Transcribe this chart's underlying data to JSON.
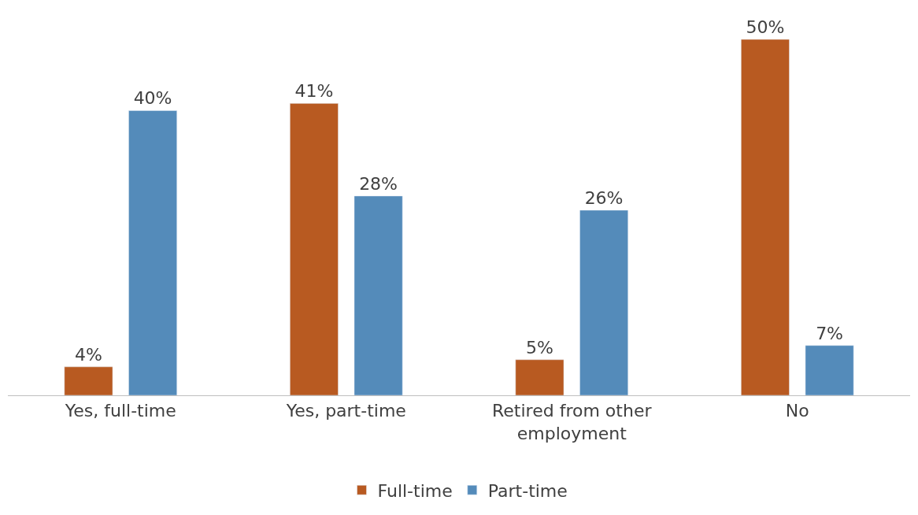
{
  "chart_data": {
    "type": "bar",
    "categories": [
      "Yes, full-time",
      "Yes, part-time",
      "Retired from other employment",
      "No"
    ],
    "series": [
      {
        "name": "Full-time",
        "color": "#b85a21",
        "values": [
          4,
          41,
          5,
          50
        ],
        "value_labels": [
          "4%",
          "41%",
          "5%",
          "50%"
        ]
      },
      {
        "name": "Part-time",
        "color": "#548bba",
        "values": [
          40,
          28,
          26,
          7
        ],
        "value_labels": [
          "40%",
          "28%",
          "26%",
          "7%"
        ]
      }
    ],
    "ylim": [
      0,
      50
    ],
    "tick_labels": "x",
    "legend": "bottom"
  }
}
